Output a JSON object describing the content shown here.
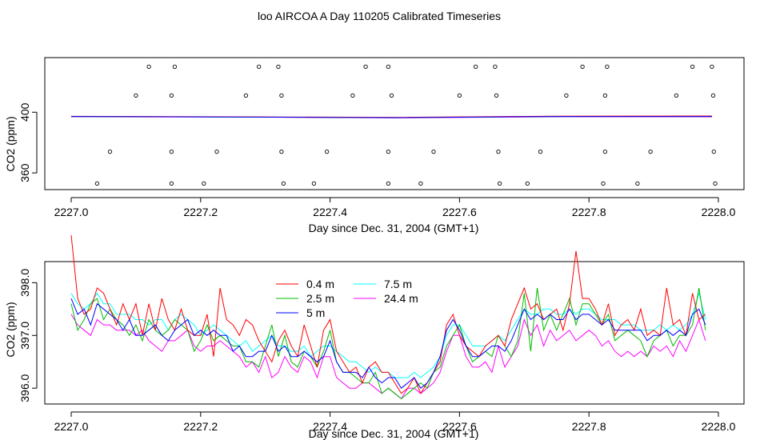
{
  "title": "loo AIRCOA A  Day 110205  Calibrated Timeseries",
  "colors": {
    "0.4 m": "#ff0000",
    "2.5 m": "#00bb00",
    "5 m": "#0000ff",
    "7.5 m": "#00ffff",
    "24.4 m": "#ff00ff",
    "axis": "#000000"
  },
  "chart_data": [
    {
      "type": "scatter",
      "title": "",
      "xlabel": "Day since Dec. 31, 2004 (GMT+1)",
      "ylabel": "CO2 (ppm)",
      "xlim": [
        2227.0,
        2228.0
      ],
      "ylim": [
        349,
        436
      ],
      "x_ticks": [
        "2227.0",
        "2227.2",
        "2227.4",
        "2227.6",
        "2227.8",
        "2228.0"
      ],
      "x_tick_values": [
        2227.0,
        2227.2,
        2227.4,
        2227.6,
        2227.8,
        2228.0
      ],
      "y_ticks": [
        "360",
        "400"
      ],
      "y_tick_values": [
        360,
        400
      ],
      "legend": "none",
      "grid": false,
      "scatter_points": [
        [
          2227.04,
          353
        ],
        [
          2227.06,
          374
        ],
        [
          2227.1,
          411
        ],
        [
          2227.12,
          430
        ],
        [
          2227.155,
          353
        ],
        [
          2227.155,
          374
        ],
        [
          2227.155,
          411
        ],
        [
          2227.16,
          430
        ],
        [
          2227.205,
          353
        ],
        [
          2227.225,
          374
        ],
        [
          2227.27,
          411
        ],
        [
          2227.29,
          430
        ],
        [
          2227.32,
          430
        ],
        [
          2227.325,
          411
        ],
        [
          2227.325,
          374
        ],
        [
          2227.328,
          353
        ],
        [
          2227.375,
          353
        ],
        [
          2227.395,
          374
        ],
        [
          2227.435,
          411
        ],
        [
          2227.455,
          430
        ],
        [
          2227.49,
          430
        ],
        [
          2227.49,
          374
        ],
        [
          2227.49,
          353
        ],
        [
          2227.495,
          411
        ],
        [
          2227.54,
          353
        ],
        [
          2227.56,
          374
        ],
        [
          2227.6,
          411
        ],
        [
          2227.625,
          430
        ],
        [
          2227.655,
          430
        ],
        [
          2227.657,
          411
        ],
        [
          2227.66,
          374
        ],
        [
          2227.662,
          353
        ],
        [
          2227.705,
          353
        ],
        [
          2227.725,
          374
        ],
        [
          2227.765,
          411
        ],
        [
          2227.79,
          430
        ],
        [
          2227.822,
          353
        ],
        [
          2227.825,
          374
        ],
        [
          2227.825,
          411
        ],
        [
          2227.828,
          430
        ],
        [
          2227.875,
          353
        ],
        [
          2227.895,
          374
        ],
        [
          2227.935,
          411
        ],
        [
          2227.96,
          430
        ],
        [
          2227.99,
          430
        ],
        [
          2227.992,
          411
        ],
        [
          2227.993,
          374
        ],
        [
          2227.995,
          353
        ]
      ],
      "series": [
        {
          "name": "0.4 m",
          "x": [
            2227.0,
            2227.25,
            2227.5,
            2227.75,
            2227.99
          ],
          "values": [
            397.3,
            397.0,
            396.6,
            397.4,
            397.5
          ]
        },
        {
          "name": "2.5 m",
          "x": [
            2227.0,
            2227.25,
            2227.5,
            2227.75,
            2227.99
          ],
          "values": [
            397.2,
            396.9,
            396.4,
            397.2,
            397.2
          ]
        },
        {
          "name": "5 m",
          "x": [
            2227.0,
            2227.25,
            2227.5,
            2227.75,
            2227.99
          ],
          "values": [
            397.2,
            396.9,
            396.4,
            397.2,
            397.2
          ]
        },
        {
          "name": "7.5 m",
          "x": [
            2227.0,
            2227.25,
            2227.5,
            2227.75,
            2227.99
          ],
          "values": [
            397.2,
            396.9,
            396.5,
            397.2,
            397.3
          ]
        },
        {
          "name": "24.4 m",
          "x": [
            2227.0,
            2227.25,
            2227.5,
            2227.75,
            2227.99
          ],
          "values": [
            397.0,
            396.8,
            396.3,
            397.0,
            397.0
          ]
        }
      ]
    },
    {
      "type": "line",
      "title": "",
      "xlabel": "Day since Dec. 31, 2004 (GMT+1)",
      "ylabel": "CO2 (ppm)",
      "xlim": [
        2227.0,
        2228.0
      ],
      "ylim": [
        395.7,
        398.4
      ],
      "x_ticks": [
        "2227.0",
        "2227.2",
        "2227.4",
        "2227.6",
        "2227.8",
        "2228.0"
      ],
      "x_tick_values": [
        2227.0,
        2227.2,
        2227.4,
        2227.6,
        2227.8,
        2228.0
      ],
      "y_ticks": [
        "396.0",
        "397.0",
        "398.0"
      ],
      "y_tick_values": [
        396.0,
        397.0,
        398.0
      ],
      "legend": "top-center",
      "grid": false,
      "x": [
        2227.0,
        2227.01,
        2227.02,
        2227.03,
        2227.04,
        2227.05,
        2227.06,
        2227.07,
        2227.08,
        2227.09,
        2227.1,
        2227.11,
        2227.12,
        2227.13,
        2227.14,
        2227.15,
        2227.16,
        2227.17,
        2227.18,
        2227.19,
        2227.2,
        2227.21,
        2227.22,
        2227.23,
        2227.24,
        2227.25,
        2227.26,
        2227.27,
        2227.28,
        2227.29,
        2227.3,
        2227.31,
        2227.32,
        2227.33,
        2227.34,
        2227.35,
        2227.36,
        2227.37,
        2227.38,
        2227.39,
        2227.4,
        2227.41,
        2227.42,
        2227.43,
        2227.44,
        2227.45,
        2227.46,
        2227.47,
        2227.48,
        2227.49,
        2227.5,
        2227.51,
        2227.52,
        2227.53,
        2227.54,
        2227.55,
        2227.56,
        2227.57,
        2227.58,
        2227.59,
        2227.6,
        2227.61,
        2227.62,
        2227.63,
        2227.64,
        2227.65,
        2227.66,
        2227.67,
        2227.68,
        2227.69,
        2227.7,
        2227.71,
        2227.72,
        2227.73,
        2227.74,
        2227.75,
        2227.76,
        2227.77,
        2227.78,
        2227.79,
        2227.8,
        2227.81,
        2227.82,
        2227.83,
        2227.84,
        2227.85,
        2227.86,
        2227.87,
        2227.88,
        2227.89,
        2227.9,
        2227.91,
        2227.92,
        2227.93,
        2227.94,
        2227.95,
        2227.96,
        2227.97,
        2227.98
      ],
      "series": [
        {
          "name": "0.4 m",
          "values": [
            398.9,
            397.7,
            397.4,
            397.5,
            397.9,
            397.8,
            397.5,
            397.2,
            397.6,
            397.3,
            397.6,
            397.0,
            397.6,
            397.1,
            397.7,
            397.3,
            397.1,
            397.5,
            397.1,
            397.0,
            397.0,
            397.4,
            396.6,
            397.9,
            397.3,
            397.2,
            397.0,
            397.3,
            397.2,
            396.9,
            396.7,
            396.5,
            396.9,
            397.1,
            396.8,
            396.6,
            397.2,
            396.8,
            396.4,
            397.1,
            397.3,
            396.7,
            396.5,
            396.3,
            396.4,
            396.1,
            396.4,
            396.5,
            396.3,
            396.3,
            396.1,
            395.9,
            396.0,
            396.2,
            395.9,
            396.1,
            396.3,
            396.5,
            397.2,
            397.4,
            397.0,
            396.8,
            396.7,
            396.6,
            396.8,
            396.9,
            397.0,
            396.8,
            397.3,
            397.6,
            397.9,
            397.5,
            397.6,
            397.3,
            397.4,
            397.5,
            397.1,
            397.6,
            398.6,
            397.7,
            397.7,
            397.5,
            397.2,
            397.6,
            397.0,
            397.2,
            397.3,
            397.1,
            397.5,
            397.0,
            397.1,
            397.0,
            397.9,
            397.2,
            397.3,
            397.0,
            397.8,
            397.3,
            397.4
          ]
        },
        {
          "name": "2.5 m",
          "values": [
            397.6,
            397.1,
            397.3,
            397.6,
            397.7,
            397.3,
            397.5,
            397.3,
            397.2,
            397.0,
            397.2,
            396.9,
            397.3,
            397.1,
            397.0,
            397.1,
            397.3,
            397.2,
            397.1,
            396.7,
            396.9,
            397.2,
            396.9,
            397.0,
            396.9,
            396.8,
            396.8,
            396.5,
            396.5,
            396.4,
            396.8,
            397.2,
            396.6,
            397.0,
            396.5,
            396.4,
            396.7,
            396.6,
            396.4,
            396.7,
            397.1,
            396.5,
            396.3,
            396.3,
            396.2,
            396.1,
            396.1,
            396.3,
            395.9,
            396.0,
            395.9,
            395.8,
            395.9,
            396.0,
            396.1,
            396.0,
            396.3,
            396.4,
            396.8,
            397.0,
            397.2,
            396.8,
            396.5,
            396.6,
            396.7,
            396.6,
            397.0,
            396.8,
            396.6,
            396.9,
            397.8,
            396.7,
            397.9,
            397.1,
            397.4,
            397.1,
            397.4,
            397.7,
            397.2,
            397.6,
            397.6,
            397.4,
            397.2,
            397.4,
            396.9,
            397.0,
            397.1,
            397.0,
            396.9,
            396.6,
            396.9,
            397.0,
            397.1,
            396.8,
            397.0,
            397.0,
            397.2,
            397.9,
            397.1
          ]
        },
        {
          "name": "5 m",
          "values": [
            397.7,
            397.4,
            397.5,
            397.2,
            397.6,
            397.5,
            397.4,
            397.3,
            397.1,
            397.3,
            397.0,
            397.0,
            397.1,
            397.2,
            397.0,
            396.9,
            397.1,
            397.2,
            397.3,
            397.0,
            397.1,
            397.0,
            397.1,
            397.0,
            397.0,
            396.7,
            396.8,
            396.6,
            396.6,
            396.7,
            396.7,
            397.0,
            396.7,
            396.8,
            396.6,
            396.6,
            396.7,
            396.6,
            396.5,
            396.6,
            396.9,
            396.5,
            396.3,
            396.3,
            396.3,
            396.2,
            396.4,
            396.2,
            396.1,
            396.2,
            396.2,
            396.0,
            396.1,
            396.2,
            396.0,
            396.1,
            396.3,
            396.6,
            397.1,
            397.3,
            397.1,
            396.8,
            396.6,
            396.6,
            396.7,
            396.8,
            396.8,
            396.7,
            396.9,
            397.2,
            397.5,
            397.3,
            397.4,
            397.3,
            397.4,
            397.3,
            397.3,
            397.5,
            397.3,
            397.4,
            397.4,
            397.3,
            397.2,
            397.3,
            397.1,
            397.1,
            397.1,
            397.1,
            397.1,
            396.9,
            397.0,
            397.0,
            397.1,
            397.0,
            397.1,
            397.0,
            397.4,
            397.5,
            397.2
          ]
        },
        {
          "name": "7.5 m",
          "values": [
            397.8,
            397.6,
            397.5,
            397.6,
            397.8,
            397.6,
            397.6,
            397.4,
            397.4,
            397.4,
            397.3,
            397.3,
            397.2,
            397.3,
            397.3,
            397.1,
            397.3,
            397.4,
            397.3,
            397.2,
            397.0,
            397.1,
            397.2,
            397.1,
            397.0,
            396.9,
            396.8,
            396.9,
            396.7,
            396.8,
            396.9,
            397.0,
            396.8,
            396.8,
            396.7,
            396.7,
            396.8,
            396.6,
            396.7,
            396.8,
            396.8,
            396.7,
            396.6,
            396.5,
            396.5,
            396.4,
            396.3,
            396.4,
            396.3,
            396.3,
            396.2,
            396.2,
            396.2,
            396.3,
            396.2,
            396.3,
            396.4,
            396.6,
            397.0,
            397.2,
            397.2,
            397.0,
            396.8,
            396.8,
            396.8,
            396.9,
            397.0,
            396.9,
            397.1,
            397.3,
            397.5,
            397.4,
            397.4,
            397.5,
            397.5,
            397.4,
            397.4,
            397.5,
            397.4,
            397.5,
            397.5,
            397.4,
            397.3,
            397.3,
            397.3,
            397.2,
            397.2,
            397.2,
            397.1,
            397.1,
            397.1,
            397.2,
            397.1,
            397.2,
            397.1,
            397.2,
            397.4,
            397.8,
            397.3
          ]
        },
        {
          "name": "24.4 m",
          "values": [
            397.4,
            397.2,
            397.1,
            397.0,
            397.3,
            397.2,
            397.2,
            397.1,
            397.1,
            397.1,
            397.0,
            397.1,
            396.9,
            396.8,
            396.7,
            396.9,
            396.9,
            397.0,
            397.1,
            396.8,
            396.7,
            396.8,
            396.8,
            396.9,
            396.8,
            396.7,
            396.6,
            396.4,
            396.5,
            396.3,
            396.6,
            396.2,
            396.3,
            396.6,
            396.4,
            396.3,
            396.6,
            396.5,
            396.2,
            396.6,
            396.6,
            396.2,
            396.1,
            396.0,
            396.0,
            396.1,
            396.1,
            396.0,
            395.9,
            396.0,
            395.9,
            395.8,
            396.0,
            396.0,
            395.9,
            396.0,
            396.1,
            396.3,
            396.7,
            397.0,
            397.0,
            396.6,
            396.4,
            396.4,
            396.5,
            396.3,
            396.8,
            396.4,
            396.6,
            396.8,
            397.3,
            397.0,
            397.2,
            396.8,
            397.1,
            396.9,
            397.0,
            397.1,
            396.9,
            397.0,
            397.1,
            397.0,
            396.8,
            396.9,
            396.7,
            396.6,
            396.7,
            396.6,
            396.7,
            396.6,
            396.8,
            396.7,
            396.8,
            396.6,
            396.9,
            396.7,
            397.0,
            397.3,
            396.9
          ]
        }
      ]
    }
  ]
}
